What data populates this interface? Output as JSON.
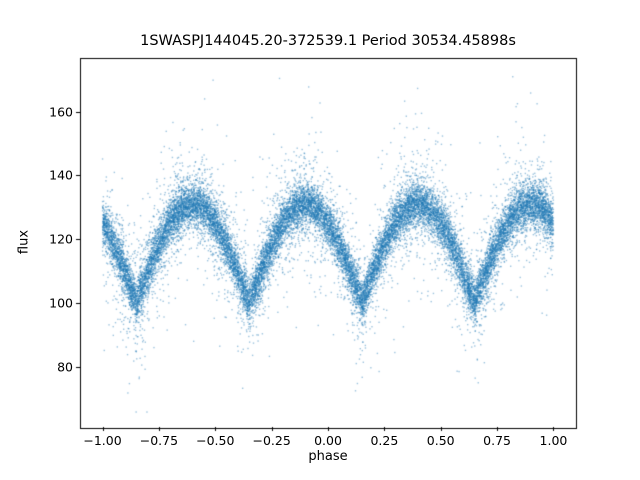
{
  "chart_data": {
    "type": "scatter",
    "title": "1SWASPJ144045.20-372539.1 Period 30534.45898s",
    "xlabel": "phase",
    "ylabel": "flux",
    "xlim": [
      -1.1,
      1.1
    ],
    "ylim": [
      61,
      177
    ],
    "grid": false,
    "legend": null,
    "x_ticks": {
      "values": [
        -1.0,
        -0.75,
        -0.5,
        -0.25,
        0.0,
        0.25,
        0.5,
        0.75,
        1.0
      ],
      "labels": [
        "−1.00",
        "−0.75",
        "−0.50",
        "−0.25",
        "0.00",
        "0.25",
        "0.50",
        "0.75",
        "1.00"
      ]
    },
    "y_ticks": {
      "values": [
        80,
        100,
        120,
        140,
        160
      ],
      "labels": [
        "80",
        "100",
        "120",
        "140",
        "160"
      ]
    },
    "marker": {
      "color": "#1f77b4",
      "alpha": 0.45,
      "size": 1.4
    },
    "points": {
      "n": 22000,
      "seed": 42,
      "x_range": [
        -1,
        1
      ],
      "model": {
        "shape": "abs_sine",
        "flux_min": 100,
        "amplitude": 31,
        "phase_period": 0.5,
        "min_phase": 0.15,
        "minima_phases": [
          -0.85,
          -0.35,
          0.15,
          0.65
        ],
        "maxima_phases": [
          -0.6,
          -0.1,
          0.4,
          0.9
        ],
        "flux_max": 131
      },
      "noise_mixture": [
        {
          "frac": 0.74,
          "sigma": 3.2
        },
        {
          "frac": 0.2,
          "sigma": 7.0
        },
        {
          "frac": 0.06,
          "sigma": 15.0
        }
      ],
      "observed_flux_extremes": {
        "min": 66,
        "max": 171
      }
    }
  }
}
